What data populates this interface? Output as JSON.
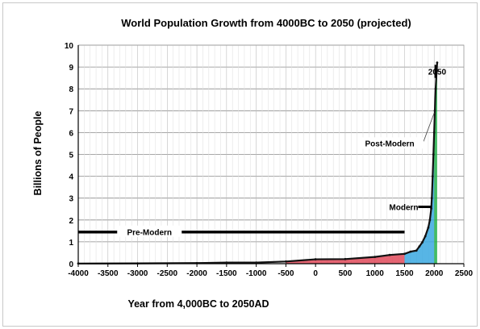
{
  "chart_data": {
    "type": "area",
    "title": "World Population Growth from 4000BC to 2050 (projected)",
    "xlabel": "Year from 4,000BC to 2050AD",
    "ylabel": "Billions of People",
    "xlim": [
      -4000,
      2500
    ],
    "ylim": [
      0,
      10
    ],
    "x_ticks": [
      -4000,
      -3500,
      -3000,
      -2500,
      -2000,
      -1500,
      -1000,
      -500,
      0,
      500,
      1000,
      1500,
      2000,
      2500
    ],
    "y_ticks": [
      0,
      1,
      2,
      3,
      4,
      5,
      6,
      7,
      8,
      9,
      10
    ],
    "grid": true,
    "series": [
      {
        "points": [
          [
            -4000,
            0.007
          ],
          [
            -3000,
            0.014
          ],
          [
            -2000,
            0.027
          ],
          [
            -1500,
            0.05
          ],
          [
            -1000,
            0.05
          ],
          [
            -500,
            0.1
          ],
          [
            0,
            0.2
          ],
          [
            500,
            0.21
          ],
          [
            1000,
            0.31
          ],
          [
            1250,
            0.4
          ],
          [
            1500,
            0.45
          ],
          [
            1600,
            0.55
          ],
          [
            1700,
            0.6
          ],
          [
            1750,
            0.79
          ],
          [
            1800,
            0.98
          ],
          [
            1850,
            1.26
          ],
          [
            1900,
            1.65
          ],
          [
            1927,
            2.0
          ],
          [
            1950,
            2.52
          ],
          [
            1960,
            3.0
          ],
          [
            1974,
            4.0
          ],
          [
            1987,
            5.0
          ],
          [
            1999,
            6.0
          ],
          [
            2011,
            7.0
          ],
          [
            2024,
            8.0
          ],
          [
            2050,
            9.2
          ]
        ]
      }
    ],
    "eras": [
      {
        "label": "Pre-Modern",
        "from": -500,
        "to": 1500,
        "color": "#e04a5a"
      },
      {
        "label": "Modern",
        "from": 1500,
        "to": 2000,
        "color": "#3aa8e0"
      },
      {
        "label": "Post-Modern",
        "from": 2000,
        "to": 2050,
        "color": "#22b04a"
      }
    ],
    "annotations": [
      {
        "text": "Pre-Modern",
        "bar_from": -4000,
        "bar_to": 1500,
        "y": 1.45
      },
      {
        "text": "Modern",
        "bar_from": 1500,
        "bar_to": 1960,
        "y": 2.6
      },
      {
        "text": "Post-Modern",
        "pointer_to": [
          2000,
          6.9
        ]
      },
      {
        "text": "2050",
        "x": 2050,
        "y": 8.8
      }
    ]
  }
}
